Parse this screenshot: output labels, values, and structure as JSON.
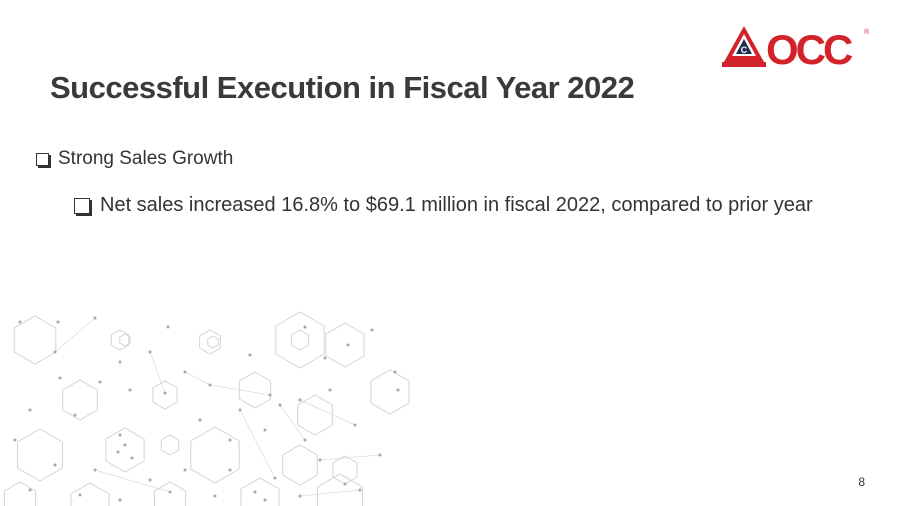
{
  "slide": {
    "title": "Successful Execution in Fiscal Year 2022",
    "bullets": [
      {
        "level": 1,
        "text": "Strong Sales Growth"
      },
      {
        "level": 2,
        "text": "Net sales increased 16.8% to $69.1 million in fiscal 2022, compared to prior year"
      }
    ],
    "page_number": "8"
  },
  "logo": {
    "text": "OCC",
    "mark_letter": "C",
    "registered": "®",
    "colors": {
      "red": "#d2232a",
      "navy": "#1f2d4e"
    }
  },
  "decoration": {
    "pattern": "hexagon-network",
    "color": "#d0d0d0"
  }
}
